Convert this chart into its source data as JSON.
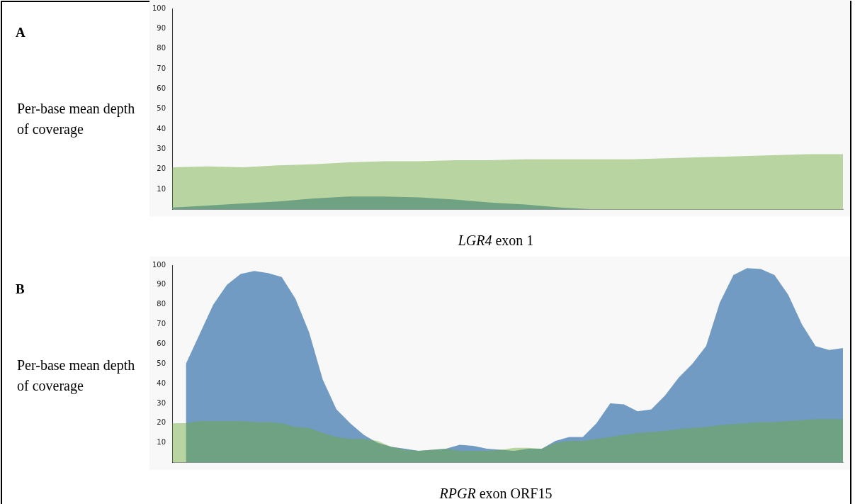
{
  "chart_data": [
    {
      "type": "area",
      "annotations": [
        "A"
      ],
      "xlabel": "LGR4 exon 1",
      "ylabel": "Per-base mean depth of coverage",
      "categories": [
        null,
        null,
        null,
        null,
        null,
        null,
        null,
        null,
        null,
        null,
        null,
        null,
        null,
        null,
        null,
        null,
        null,
        null,
        null,
        null
      ],
      "ylim": [
        0,
        100
      ],
      "yticks": [
        10,
        20,
        30,
        40,
        50,
        60,
        70,
        80,
        90,
        100
      ],
      "grid": false,
      "legend": false,
      "series": [
        {
          "color": "#b8d4a0",
          "values": [
            21,
            21.5,
            21,
            22,
            22.5,
            23.5,
            24,
            24,
            24.5,
            24.5,
            25,
            25,
            25,
            25,
            25.5,
            26,
            26.5,
            27,
            27.5,
            27.5
          ]
        },
        {
          "color": "#719bc2",
          "values": [
            1,
            2,
            3,
            4,
            5.5,
            6.5,
            6.5,
            6,
            5,
            3.5,
            2.5,
            1,
            0,
            0,
            0,
            0,
            0,
            0,
            0,
            0
          ]
        }
      ]
    },
    {
      "type": "area",
      "annotations": [
        "B"
      ],
      "xlabel": "RPGR exon ORF15",
      "ylabel": "Per-base mean depth of coverage",
      "categories": [
        null,
        null,
        null,
        null,
        null,
        null,
        null,
        null,
        null,
        null,
        null,
        null,
        null,
        null,
        null,
        null,
        null,
        null,
        null,
        null,
        null,
        null,
        null,
        null,
        null,
        null,
        null,
        null,
        null,
        null,
        null,
        null,
        null,
        null,
        null,
        null,
        null,
        null,
        null,
        null,
        null,
        null,
        null,
        null,
        null,
        null,
        null,
        null,
        null,
        null
      ],
      "ylim": [
        0,
        100
      ],
      "yticks": [
        10,
        20,
        30,
        40,
        50,
        60,
        70,
        80,
        90,
        100
      ],
      "grid": false,
      "legend": false,
      "series": [
        {
          "color": "#b8d4a0",
          "values": [
            20,
            20,
            21,
            21,
            21,
            21,
            20.5,
            20.5,
            20,
            18,
            17.5,
            15,
            13,
            12,
            12,
            11,
            8,
            6.5,
            6,
            6.5,
            7,
            6,
            6,
            6,
            6.5,
            7.5,
            7.5,
            7,
            10,
            11,
            11,
            12,
            13,
            14,
            15,
            15.5,
            16,
            17,
            17.5,
            18,
            19,
            19.5,
            20,
            20.5,
            20.5,
            21,
            21.5,
            22,
            22,
            22
          ]
        },
        {
          "color": "#719bc2",
          "values": [
            null,
            50,
            65,
            80,
            90,
            95.5,
            97,
            96,
            94,
            83,
            66,
            42,
            27,
            20,
            14,
            10,
            8,
            7,
            6,
            6.5,
            7,
            9,
            8.5,
            7,
            6.5,
            6,
            7,
            7,
            11,
            13,
            13,
            20,
            30,
            29.5,
            26,
            27,
            34,
            43,
            50,
            59,
            81,
            95,
            98.5,
            98,
            95,
            85,
            70,
            59,
            57,
            58
          ]
        }
      ]
    }
  ]
}
